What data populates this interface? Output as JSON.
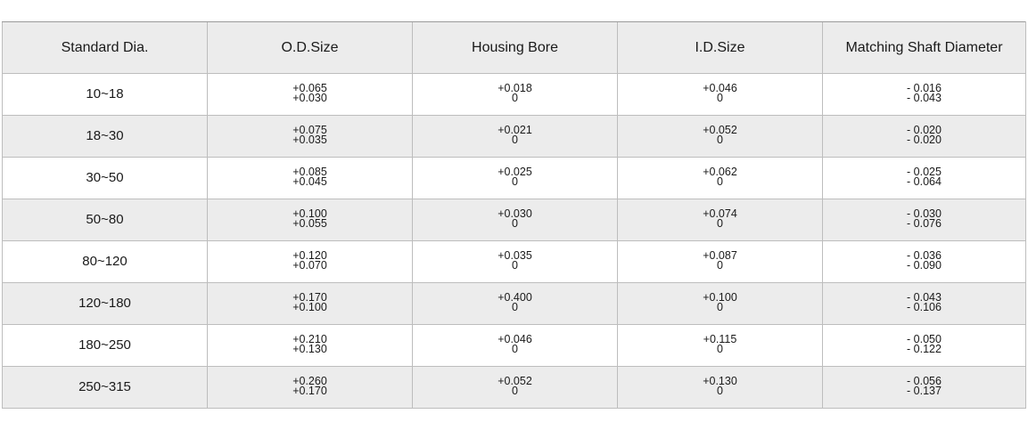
{
  "table": {
    "headers": [
      "Standard Dia.",
      "O.D.Size",
      "Housing Bore",
      "I.D.Size",
      "Matching Shaft Diameter"
    ],
    "rows": [
      {
        "dia": "10~18",
        "od": [
          "+0.065",
          "+0.030"
        ],
        "bore": [
          "+0.018",
          "0"
        ],
        "id": [
          "+0.046",
          "0"
        ],
        "shaft": [
          "- 0.016",
          "- 0.043"
        ]
      },
      {
        "dia": "18~30",
        "od": [
          "+0.075",
          "+0.035"
        ],
        "bore": [
          "+0.021",
          "0"
        ],
        "id": [
          "+0.052",
          "0"
        ],
        "shaft": [
          "- 0.020",
          "- 0.020"
        ]
      },
      {
        "dia": "30~50",
        "od": [
          "+0.085",
          "+0.045"
        ],
        "bore": [
          "+0.025",
          "0"
        ],
        "id": [
          "+0.062",
          "0"
        ],
        "shaft": [
          "- 0.025",
          "- 0.064"
        ]
      },
      {
        "dia": "50~80",
        "od": [
          "+0.100",
          "+0.055"
        ],
        "bore": [
          "+0.030",
          "0"
        ],
        "id": [
          "+0.074",
          "0"
        ],
        "shaft": [
          "- 0.030",
          "- 0.076"
        ]
      },
      {
        "dia": "80~120",
        "od": [
          "+0.120",
          "+0.070"
        ],
        "bore": [
          "+0.035",
          "0"
        ],
        "id": [
          "+0.087",
          "0"
        ],
        "shaft": [
          "- 0.036",
          "- 0.090"
        ]
      },
      {
        "dia": "120~180",
        "od": [
          "+0.170",
          "+0.100"
        ],
        "bore": [
          "+0.400",
          "0"
        ],
        "id": [
          "+0.100",
          "0"
        ],
        "shaft": [
          "- 0.043",
          "- 0.106"
        ]
      },
      {
        "dia": "180~250",
        "od": [
          "+0.210",
          "+0.130"
        ],
        "bore": [
          "+0.046",
          "0"
        ],
        "id": [
          "+0.115",
          "0"
        ],
        "shaft": [
          "- 0.050",
          "- 0.122"
        ]
      },
      {
        "dia": "250~315",
        "od": [
          "+0.260",
          "+0.170"
        ],
        "bore": [
          "+0.052",
          "0"
        ],
        "id": [
          "+0.130",
          "0"
        ],
        "shaft": [
          "- 0.056",
          "- 0.137"
        ]
      }
    ]
  }
}
